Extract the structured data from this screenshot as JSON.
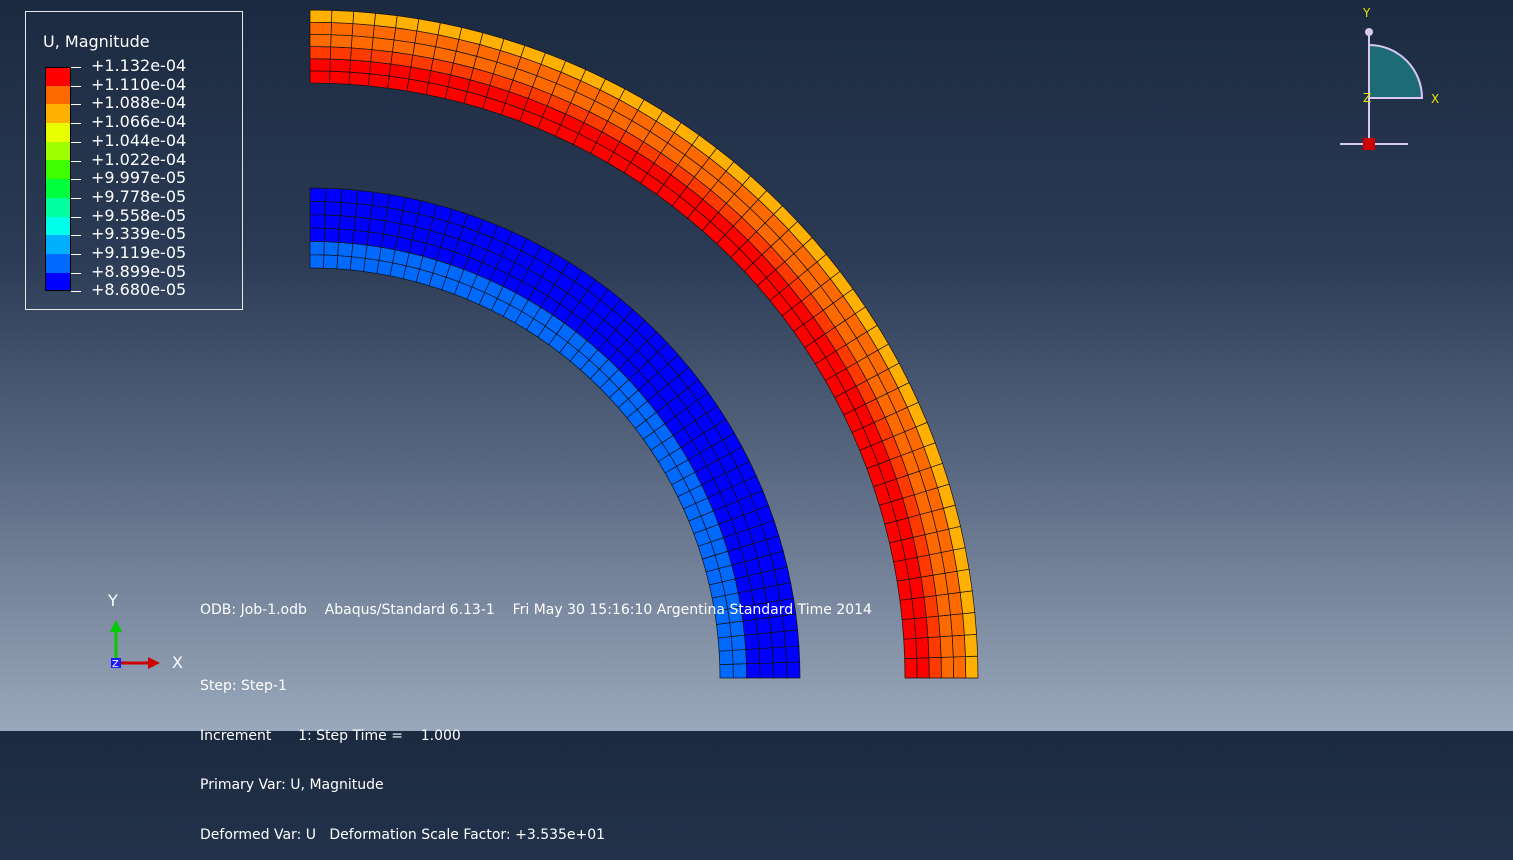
{
  "legend": {
    "title": "U, Magnitude",
    "labels": [
      "+1.132e-04",
      "+1.110e-04",
      "+1.088e-04",
      "+1.066e-04",
      "+1.044e-04",
      "+1.022e-04",
      "+9.997e-05",
      "+9.778e-05",
      "+9.558e-05",
      "+9.339e-05",
      "+9.119e-05",
      "+8.899e-05",
      "+8.680e-05"
    ],
    "colors": [
      "#ff0000",
      "#ff6a00",
      "#ffb000",
      "#e8ff00",
      "#9dff00",
      "#3dff00",
      "#00ff3d",
      "#00ff9d",
      "#00ffe8",
      "#00b0ff",
      "#006aff",
      "#0000ff"
    ]
  },
  "info": {
    "line": "ODB: Job-1.odb    Abaqus/Standard 6.13-1    Fri May 30 15:16:10 Argentina Standard Time 2014",
    "step": "Step: Step-1",
    "increment": "Increment      1: Step Time =    1.000",
    "primary": "Primary Var: U, Magnitude",
    "deformed": "Deformed Var: U   Deformation Scale Factor: +3.535e+01"
  },
  "triad": {
    "x": "X",
    "y": "Y",
    "z": "Z"
  },
  "viewcube": {
    "x": "X",
    "y": "Y",
    "z": "Z"
  },
  "mesh": {
    "outer_ring_colors": [
      "#ff0000",
      "#ff0000",
      "#ff3a00",
      "#ff6a00",
      "#ff6a00",
      "#ffb000"
    ],
    "inner_ring_colors": [
      "#006aff",
      "#006aff",
      "#0000ff",
      "#0000ff",
      "#0000ff",
      "#0000ff"
    ]
  }
}
